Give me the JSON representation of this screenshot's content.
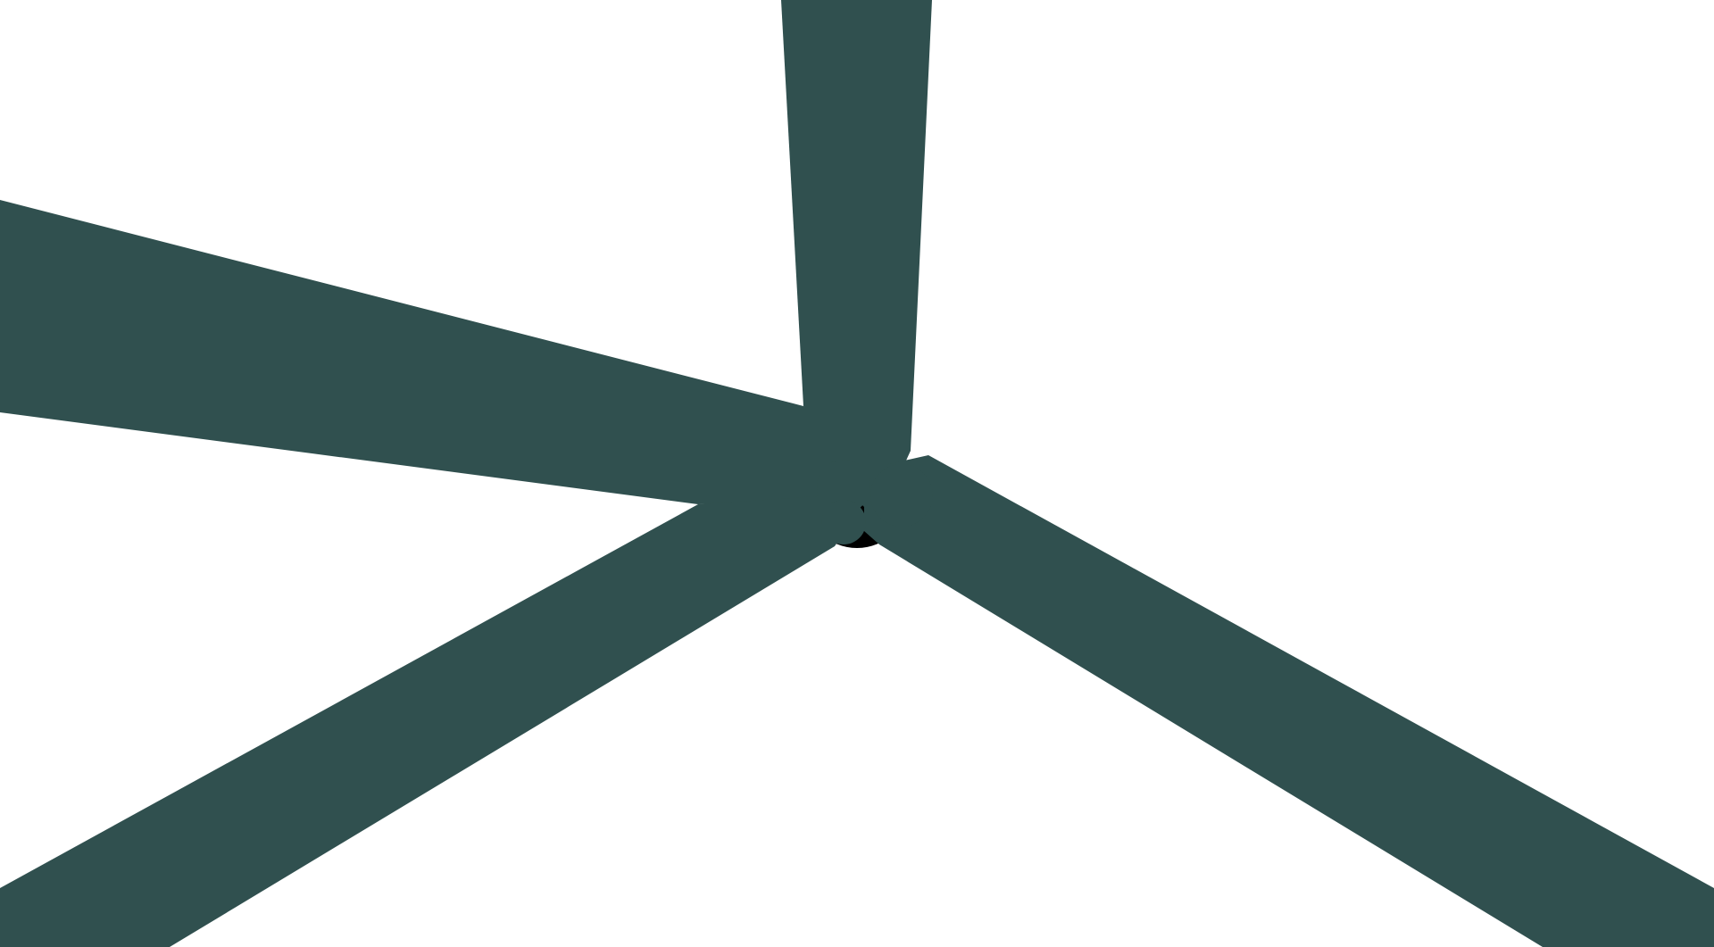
{
  "scene": {
    "background_color": "#ffffff",
    "blade_color": "#30504f",
    "hub_color": "#000000",
    "blade_count": 4,
    "hub_icon": "hub-circle-icon"
  }
}
